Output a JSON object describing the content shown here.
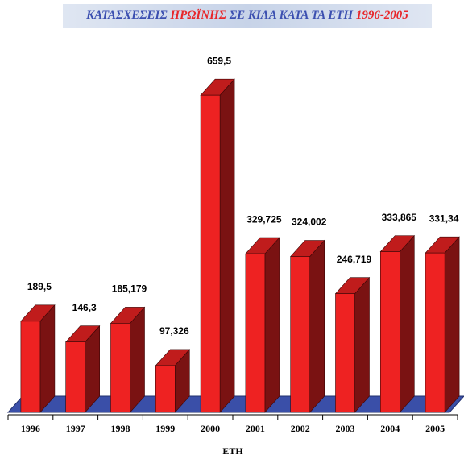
{
  "chart_data": {
    "type": "bar3d",
    "title": [
      "ΚΑΤΑΣΧΕΣΕΙΣ",
      "ΗΡΩΪΝΗΣ",
      "ΣΕ ΚΙΛΑ ΚΑΤΑ ΤΑ ΕΤΗ",
      "1996-2005"
    ],
    "x_label": "ΕΤΗ",
    "categories": [
      "1996",
      "1997",
      "1998",
      "1999",
      "2000",
      "2001",
      "2002",
      "2003",
      "2004",
      "2005"
    ],
    "values": [
      189.5,
      146.3,
      185.179,
      97.326,
      659.5,
      329.725,
      324.002,
      246.719,
      333.865,
      331.34
    ],
    "value_labels": [
      "189,5",
      "146,3",
      "185,179",
      "97,326",
      "659,5",
      "329,725",
      "324,002",
      "246,719",
      "333,865",
      "331,34"
    ],
    "color": "#ee2222",
    "ylim": [
      0,
      700
    ]
  }
}
